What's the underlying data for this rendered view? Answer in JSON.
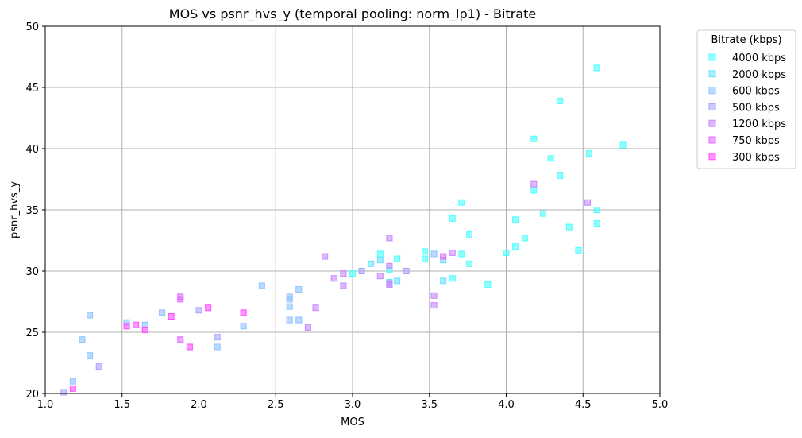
{
  "chart_data": {
    "type": "scatter",
    "title": "MOS vs psnr_hvs_y (temporal pooling: norm_lp1) - Bitrate",
    "xlabel": "MOS",
    "ylabel": "psnr_hvs_y",
    "xlim": [
      1.0,
      5.0
    ],
    "ylim": [
      20,
      50
    ],
    "xticks": [
      "1.0",
      "1.5",
      "2.0",
      "2.5",
      "3.0",
      "3.5",
      "4.0",
      "4.5",
      "5.0"
    ],
    "yticks": [
      "20",
      "25",
      "30",
      "35",
      "40",
      "45",
      "50"
    ],
    "grid": true,
    "marker": "square",
    "legend": {
      "title": "Bitrate (kbps)",
      "placement": "outside-top-right"
    },
    "series": [
      {
        "name": "4000 kbps",
        "color": "#4dffff",
        "points": [
          [
            4.59,
            46.6
          ],
          [
            4.35,
            43.9
          ],
          [
            4.18,
            40.8
          ],
          [
            4.29,
            39.2
          ],
          [
            4.54,
            39.6
          ],
          [
            4.76,
            40.3
          ],
          [
            4.35,
            37.8
          ],
          [
            4.18,
            36.6
          ],
          [
            4.59,
            35.0
          ],
          [
            3.71,
            35.6
          ],
          [
            3.65,
            34.3
          ],
          [
            4.06,
            34.2
          ],
          [
            4.24,
            34.7
          ],
          [
            4.59,
            33.9
          ],
          [
            4.41,
            33.6
          ],
          [
            3.76,
            33.0
          ],
          [
            4.12,
            32.7
          ],
          [
            4.47,
            31.7
          ],
          [
            4.06,
            32.0
          ],
          [
            3.47,
            31.6
          ],
          [
            3.71,
            31.4
          ],
          [
            4.0,
            31.5
          ],
          [
            3.18,
            31.4
          ],
          [
            3.29,
            31.0
          ],
          [
            3.47,
            31.0
          ],
          [
            3.76,
            30.6
          ],
          [
            3.24,
            30.1
          ],
          [
            3.0,
            29.8
          ],
          [
            3.65,
            29.4
          ],
          [
            3.88,
            28.9
          ]
        ]
      },
      {
        "name": "2000 kbps",
        "color": "#6ee1ff",
        "points": [
          [
            3.12,
            30.6
          ],
          [
            3.59,
            30.9
          ],
          [
            3.18,
            30.9
          ],
          [
            3.59,
            29.2
          ],
          [
            3.24,
            29.1
          ],
          [
            3.29,
            29.2
          ]
        ]
      },
      {
        "name": "600 kbps",
        "color": "#8cc3ff",
        "points": [
          [
            1.18,
            21.0
          ],
          [
            1.24,
            24.4
          ],
          [
            1.29,
            26.4
          ],
          [
            1.29,
            23.1
          ],
          [
            1.53,
            25.8
          ],
          [
            1.65,
            25.6
          ],
          [
            1.76,
            26.6
          ],
          [
            2.12,
            23.8
          ],
          [
            2.29,
            25.5
          ],
          [
            2.41,
            28.8
          ],
          [
            2.59,
            27.9
          ],
          [
            2.59,
            27.7
          ],
          [
            2.59,
            27.1
          ],
          [
            2.65,
            28.5
          ],
          [
            2.59,
            26.0
          ],
          [
            2.65,
            26.0
          ],
          [
            3.53,
            31.4
          ]
        ]
      },
      {
        "name": "500 kbps",
        "color": "#a8a5ff",
        "points": [
          [
            1.12,
            20.1
          ],
          [
            2.0,
            26.8
          ],
          [
            2.12,
            24.6
          ],
          [
            3.06,
            30.0
          ],
          [
            3.35,
            30.0
          ],
          [
            3.24,
            29.0
          ],
          [
            1.35,
            22.2
          ]
        ]
      },
      {
        "name": "1200 kbps",
        "color": "#c688ff",
        "points": [
          [
            2.71,
            25.4
          ],
          [
            2.76,
            27.0
          ],
          [
            2.82,
            31.2
          ],
          [
            2.88,
            29.4
          ],
          [
            2.94,
            28.8
          ],
          [
            2.94,
            29.8
          ],
          [
            3.18,
            29.6
          ],
          [
            3.24,
            32.7
          ],
          [
            3.24,
            30.4
          ],
          [
            3.24,
            28.9
          ],
          [
            3.53,
            28.0
          ],
          [
            3.53,
            27.2
          ],
          [
            3.65,
            31.5
          ],
          [
            4.18,
            37.1
          ],
          [
            4.53,
            35.6
          ]
        ]
      },
      {
        "name": "750 kbps",
        "color": "#e16bff",
        "points": [
          [
            1.88,
            27.9
          ],
          [
            1.88,
            27.7
          ],
          [
            1.88,
            24.4
          ],
          [
            3.59,
            31.2
          ]
        ]
      },
      {
        "name": "300 kbps",
        "color": "#ff4dff",
        "points": [
          [
            1.18,
            20.4
          ],
          [
            1.53,
            25.5
          ],
          [
            1.59,
            25.6
          ],
          [
            1.65,
            25.2
          ],
          [
            1.82,
            26.3
          ],
          [
            1.94,
            23.8
          ],
          [
            2.06,
            27.0
          ],
          [
            2.29,
            26.6
          ]
        ]
      }
    ]
  }
}
